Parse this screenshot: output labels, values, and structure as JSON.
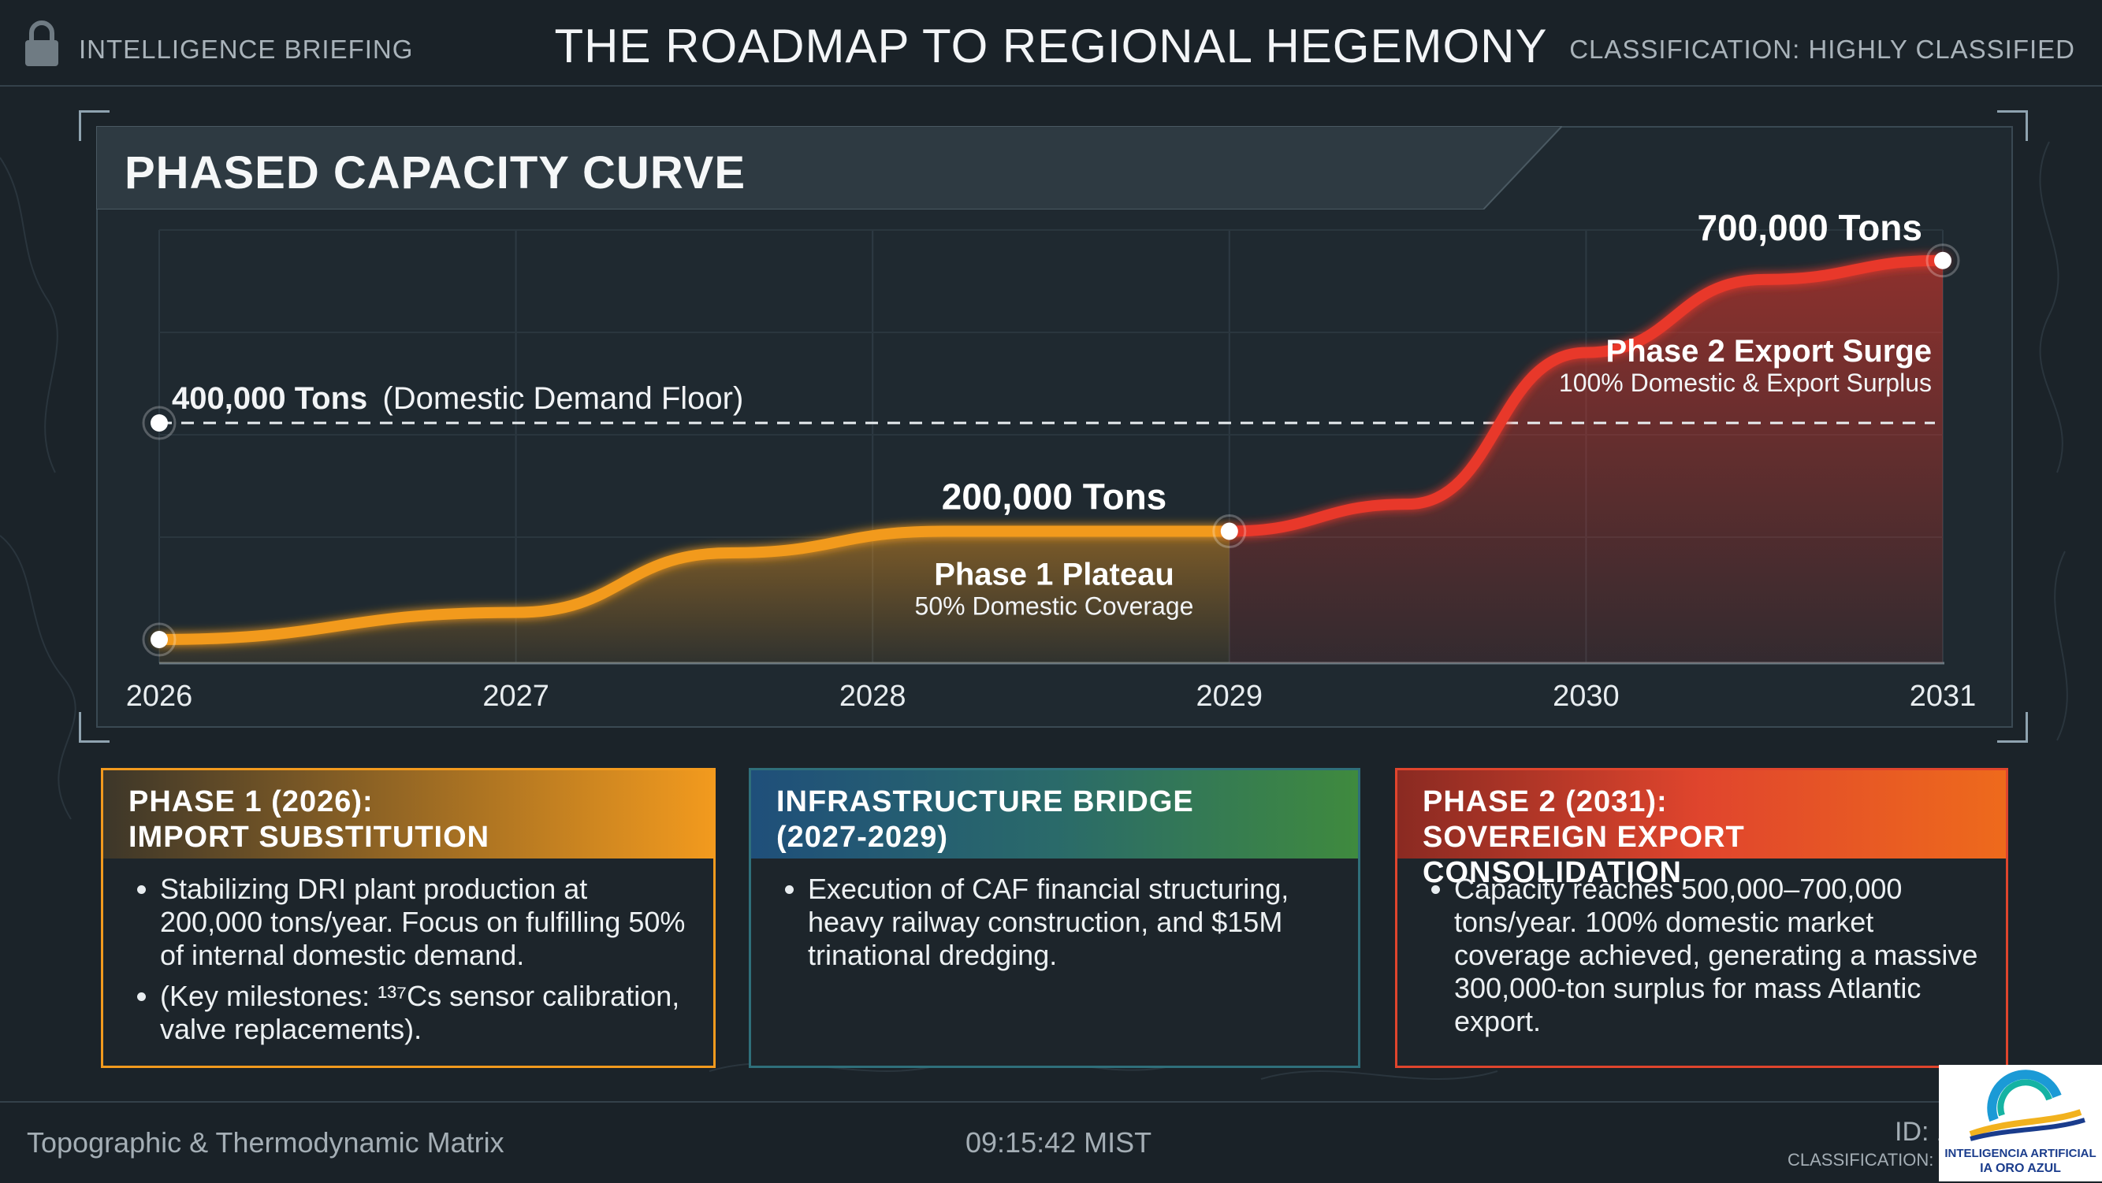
{
  "header": {
    "left_label": "INTELLIGENCE BRIEFING",
    "title": "THE ROADMAP TO REGIONAL HEGEMONY",
    "right_label": "CLASSIFICATION: HIGHLY CLASSIFIED",
    "lock_icon": "lock-icon"
  },
  "chart_data": {
    "type": "line",
    "title": "PHASED CAPACITY CURVE",
    "x": [
      2026,
      2027,
      2028,
      2029,
      2030,
      2031
    ],
    "tick_labels": [
      "2026",
      "2027",
      "2028",
      "2029",
      "2030",
      "2031"
    ],
    "ylim": [
      0,
      800000
    ],
    "series": [
      {
        "segment": "phase1",
        "color": "#f29a1e",
        "points": [
          [
            2026,
            0
          ],
          [
            2027,
            50000
          ],
          [
            2027.6,
            160000
          ],
          [
            2028.2,
            200000
          ],
          [
            2029,
            200000
          ]
        ]
      },
      {
        "segment": "phase2",
        "color": "#e8372a",
        "points": [
          [
            2029,
            200000
          ],
          [
            2029.5,
            250000
          ],
          [
            2030,
            530000
          ],
          [
            2030.5,
            665000
          ],
          [
            2031,
            700000
          ]
        ]
      }
    ],
    "reference_line": {
      "value": 400000,
      "label_value": "400,000 Tons",
      "label_note": "(Domestic Demand Floor)"
    },
    "markers": [
      {
        "x": 2026,
        "y": 0
      },
      {
        "x": 2029,
        "y": 200000
      },
      {
        "x": 2031,
        "y": 700000
      },
      {
        "x": 2026,
        "y": 400000
      }
    ],
    "annotations": {
      "phase1_value": "200,000 Tons",
      "phase1_title": "Phase 1 Plateau",
      "phase1_sub": "50% Domestic Coverage",
      "phase2_value": "700,000 Tons",
      "phase2_title": "Phase 2 Export Surge",
      "phase2_sub": "100% Domestic & Export Surplus"
    },
    "grid": true,
    "colors": {
      "phase1": "#f29a1e",
      "phase2": "#e8372a",
      "reference": "#e8edf0"
    }
  },
  "cards": [
    {
      "title": "PHASE 1 (2026):\nIMPORT SUBSTITUTION",
      "accent": "#f29a1e",
      "bullets": [
        "Stabilizing DRI plant production at 200,000 tons/year. Focus on fulfilling 50% of internal domestic demand.",
        "(Key milestones: ¹³⁷Cs sensor calibration, valve replacements)."
      ]
    },
    {
      "title": "INFRASTRUCTURE BRIDGE\n(2027-2029)",
      "accent": "#3f8fc0",
      "bullets": [
        "Execution of CAF financial structuring, heavy railway construction, and $15M trinational dredging."
      ]
    },
    {
      "title": "PHASE 2 (2031):\nSOVEREIGN EXPORT CONSOLIDATION",
      "accent": "#e0452d",
      "bullets": [
        "Capacity reaches 500,000–700,000 tons/year. 100% domestic market coverage achieved, generating a massive 300,000-ton surplus for mass Atlantic export."
      ]
    }
  ],
  "footer": {
    "left": "Topographic & Thermodynamic Matrix",
    "time": "09:15:42 MIST",
    "id": "ID: 1",
    "classification": "CLASSIFICATION: I"
  },
  "logo": {
    "line1": "INTELIGENCIA ARTIFICIAL",
    "line2": "IA ORO AZUL"
  }
}
